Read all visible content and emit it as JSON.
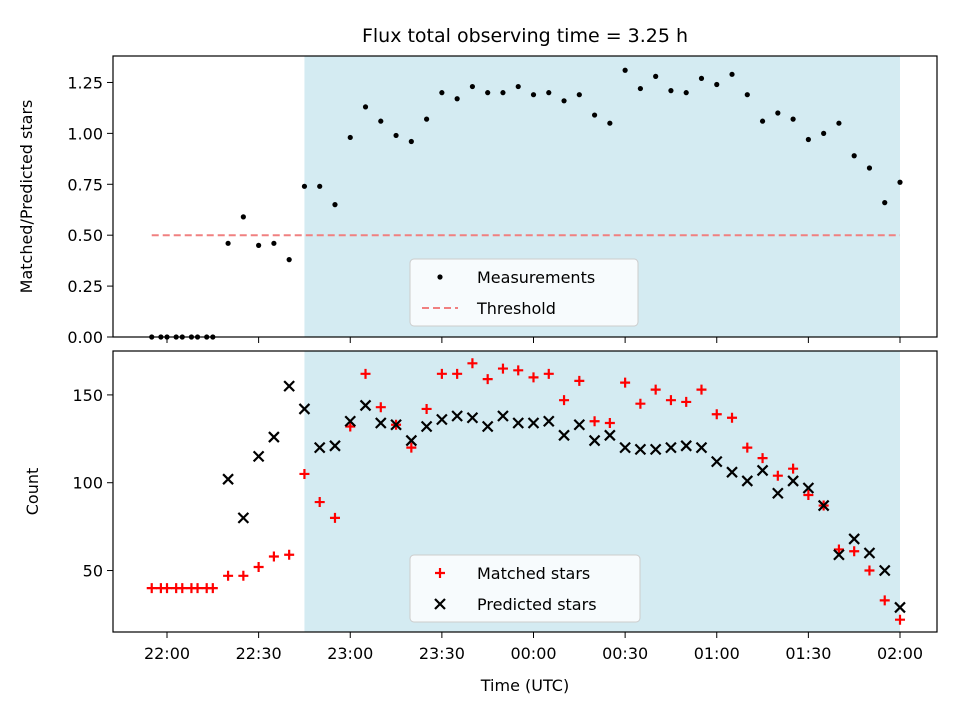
{
  "chart_data": {
    "title": "Flux total observing time = 3.25 h",
    "xlabel": "Time (UTC)",
    "x_ticks": [
      "22:00",
      "22:30",
      "23:00",
      "23:30",
      "00:00",
      "00:30",
      "01:00",
      "01:30",
      "02:00"
    ],
    "shaded_region": {
      "from": "22:45",
      "to": "02:00",
      "color": "#d4ebf2"
    },
    "grid": false,
    "times": [
      "21:55",
      "21:58",
      "22:00",
      "22:03",
      "22:05",
      "22:08",
      "22:10",
      "22:13",
      "22:15",
      "22:18",
      "22:20",
      "22:23",
      "22:25",
      "22:28",
      "22:30",
      "22:33",
      "22:35",
      "22:38",
      "22:40",
      "22:43",
      "22:45",
      "22:48",
      "22:50",
      "22:53",
      "22:55",
      "22:58",
      "23:00",
      "23:03",
      "23:05",
      "23:08",
      "23:10",
      "23:13",
      "23:15",
      "23:18",
      "23:20",
      "23:23",
      "23:25",
      "23:28",
      "23:30",
      "23:33",
      "23:35",
      "23:38",
      "23:40",
      "23:43",
      "23:45",
      "23:48",
      "23:50",
      "23:53",
      "23:55",
      "23:58",
      "00:00",
      "00:03",
      "00:05",
      "00:08",
      "00:10",
      "00:13",
      "00:15",
      "00:18",
      "00:20",
      "00:23",
      "00:25",
      "00:28",
      "00:30",
      "00:33",
      "00:35",
      "00:38",
      "00:40",
      "00:43",
      "00:45",
      "00:48",
      "00:50",
      "00:53",
      "00:55",
      "00:58",
      "01:00",
      "01:03",
      "01:05",
      "01:08",
      "01:10",
      "01:13",
      "01:15",
      "01:18",
      "01:20",
      "01:23",
      "01:25",
      "01:28",
      "01:30",
      "01:33",
      "01:35",
      "01:38",
      "01:40",
      "01:43",
      "01:45",
      "01:48",
      "01:50",
      "01:53",
      "01:55",
      "01:58",
      "02:00"
    ],
    "panels": [
      {
        "type": "scatter",
        "ylabel": "Matched/Predicted stars",
        "ylim": [
          0,
          1.38
        ],
        "y_ticks": [
          "0.00",
          "0.25",
          "0.50",
          "0.75",
          "1.00",
          "1.25"
        ],
        "legend_position": "bottom-center",
        "threshold": {
          "name": "Threshold",
          "value": 0.5,
          "from": "21:55",
          "to": "02:00",
          "color": "#f08080"
        },
        "series": [
          {
            "name": "Measurements",
            "marker": "dot",
            "color": "#000000",
            "points": [
              [
                "21:55",
                0.0
              ],
              [
                "21:58",
                0.0
              ],
              [
                "22:00",
                0.0
              ],
              [
                "22:03",
                0.0
              ],
              [
                "22:05",
                0.0
              ],
              [
                "22:08",
                0.0
              ],
              [
                "22:10",
                0.0
              ],
              [
                "22:13",
                0.0
              ],
              [
                "22:15",
                0.0
              ],
              [
                "22:20",
                0.46
              ],
              [
                "22:25",
                0.59
              ],
              [
                "22:30",
                0.45
              ],
              [
                "22:35",
                0.46
              ],
              [
                "22:40",
                0.38
              ],
              [
                "22:45",
                0.74
              ],
              [
                "22:50",
                0.74
              ],
              [
                "22:55",
                0.65
              ],
              [
                "23:00",
                0.98
              ],
              [
                "23:05",
                1.13
              ],
              [
                "23:10",
                1.06
              ],
              [
                "23:15",
                0.99
              ],
              [
                "23:20",
                0.96
              ],
              [
                "23:25",
                1.07
              ],
              [
                "23:30",
                1.2
              ],
              [
                "23:35",
                1.17
              ],
              [
                "23:40",
                1.23
              ],
              [
                "23:45",
                1.2
              ],
              [
                "23:50",
                1.2
              ],
              [
                "23:55",
                1.23
              ],
              [
                "00:00",
                1.19
              ],
              [
                "00:05",
                1.2
              ],
              [
                "00:10",
                1.16
              ],
              [
                "00:15",
                1.19
              ],
              [
                "00:20",
                1.09
              ],
              [
                "00:25",
                1.05
              ],
              [
                "00:30",
                1.31
              ],
              [
                "00:35",
                1.22
              ],
              [
                "00:40",
                1.28
              ],
              [
                "00:45",
                1.21
              ],
              [
                "00:50",
                1.2
              ],
              [
                "00:55",
                1.27
              ],
              [
                "01:00",
                1.24
              ],
              [
                "01:05",
                1.29
              ],
              [
                "01:10",
                1.19
              ],
              [
                "01:15",
                1.06
              ],
              [
                "01:20",
                1.1
              ],
              [
                "01:25",
                1.07
              ],
              [
                "01:30",
                0.97
              ],
              [
                "01:35",
                1.0
              ],
              [
                "01:40",
                1.05
              ],
              [
                "01:45",
                0.89
              ],
              [
                "01:50",
                0.83
              ],
              [
                "01:55",
                0.66
              ],
              [
                "02:00",
                0.76
              ]
            ]
          }
        ]
      },
      {
        "type": "scatter",
        "ylabel": "Count",
        "ylim": [
          15,
          175
        ],
        "y_ticks": [
          "50",
          "100",
          "150"
        ],
        "legend_position": "bottom-center",
        "series": [
          {
            "name": "Matched stars",
            "marker": "plus",
            "color": "#ff0000",
            "points": [
              [
                "21:55",
                40
              ],
              [
                "21:58",
                40
              ],
              [
                "22:00",
                40
              ],
              [
                "22:03",
                40
              ],
              [
                "22:05",
                40
              ],
              [
                "22:08",
                40
              ],
              [
                "22:10",
                40
              ],
              [
                "22:13",
                40
              ],
              [
                "22:15",
                40
              ],
              [
                "22:20",
                47
              ],
              [
                "22:25",
                47
              ],
              [
                "22:30",
                52
              ],
              [
                "22:35",
                58
              ],
              [
                "22:40",
                59
              ],
              [
                "22:45",
                105
              ],
              [
                "22:50",
                89
              ],
              [
                "22:55",
                80
              ],
              [
                "23:00",
                132
              ],
              [
                "23:05",
                162
              ],
              [
                "23:10",
                143
              ],
              [
                "23:15",
                133
              ],
              [
                "23:20",
                120
              ],
              [
                "23:25",
                142
              ],
              [
                "23:30",
                162
              ],
              [
                "23:35",
                162
              ],
              [
                "23:40",
                168
              ],
              [
                "23:45",
                159
              ],
              [
                "23:50",
                165
              ],
              [
                "23:55",
                164
              ],
              [
                "00:00",
                160
              ],
              [
                "00:05",
                162
              ],
              [
                "00:10",
                147
              ],
              [
                "00:15",
                158
              ],
              [
                "00:20",
                135
              ],
              [
                "00:25",
                134
              ],
              [
                "00:30",
                157
              ],
              [
                "00:35",
                145
              ],
              [
                "00:40",
                153
              ],
              [
                "00:45",
                147
              ],
              [
                "00:50",
                146
              ],
              [
                "00:55",
                153
              ],
              [
                "01:00",
                139
              ],
              [
                "01:05",
                137
              ],
              [
                "01:10",
                120
              ],
              [
                "01:15",
                114
              ],
              [
                "01:20",
                104
              ],
              [
                "01:25",
                108
              ],
              [
                "01:30",
                93
              ],
              [
                "01:35",
                87
              ],
              [
                "01:40",
                62
              ],
              [
                "01:45",
                61
              ],
              [
                "01:50",
                50
              ],
              [
                "01:55",
                33
              ],
              [
                "02:00",
                22
              ]
            ]
          },
          {
            "name": "Predicted stars",
            "marker": "x",
            "color": "#000000",
            "points": [
              [
                "22:20",
                102
              ],
              [
                "22:25",
                80
              ],
              [
                "22:30",
                115
              ],
              [
                "22:35",
                126
              ],
              [
                "22:40",
                155
              ],
              [
                "22:45",
                142
              ],
              [
                "22:50",
                120
              ],
              [
                "22:55",
                121
              ],
              [
                "23:00",
                135
              ],
              [
                "23:05",
                144
              ],
              [
                "23:10",
                134
              ],
              [
                "23:15",
                133
              ],
              [
                "23:20",
                124
              ],
              [
                "23:25",
                132
              ],
              [
                "23:30",
                136
              ],
              [
                "23:35",
                138
              ],
              [
                "23:40",
                137
              ],
              [
                "23:45",
                132
              ],
              [
                "23:50",
                138
              ],
              [
                "23:55",
                134
              ],
              [
                "00:00",
                134
              ],
              [
                "00:05",
                135
              ],
              [
                "00:10",
                127
              ],
              [
                "00:15",
                133
              ],
              [
                "00:20",
                124
              ],
              [
                "00:25",
                127
              ],
              [
                "00:30",
                120
              ],
              [
                "00:35",
                119
              ],
              [
                "00:40",
                119
              ],
              [
                "00:45",
                120
              ],
              [
                "00:50",
                121
              ],
              [
                "00:55",
                120
              ],
              [
                "01:00",
                112
              ],
              [
                "01:05",
                106
              ],
              [
                "01:10",
                101
              ],
              [
                "01:15",
                107
              ],
              [
                "01:20",
                94
              ],
              [
                "01:25",
                101
              ],
              [
                "01:30",
                97
              ],
              [
                "01:35",
                87
              ],
              [
                "01:40",
                59
              ],
              [
                "01:45",
                68
              ],
              [
                "01:50",
                60
              ],
              [
                "01:55",
                50
              ],
              [
                "02:00",
                29
              ]
            ]
          }
        ]
      }
    ]
  }
}
